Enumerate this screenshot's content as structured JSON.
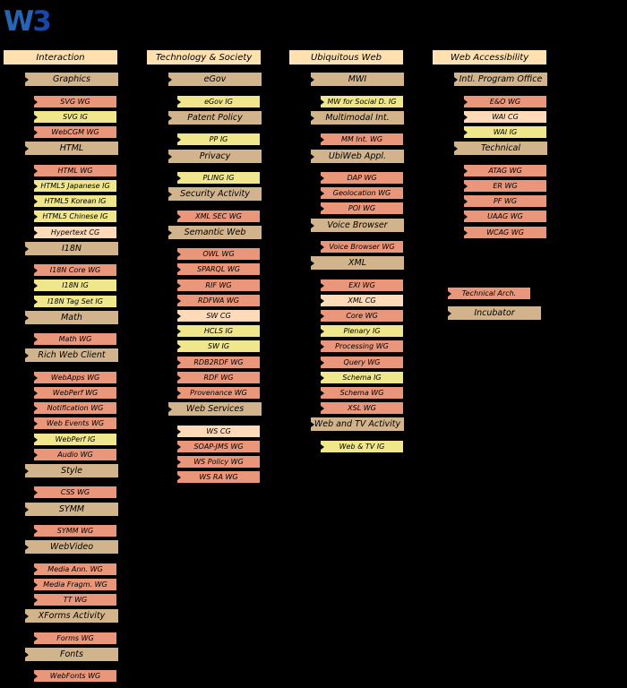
{
  "logo": {
    "w": "W",
    "three": "3"
  },
  "colors": {
    "background": "#000000",
    "text": "#000000",
    "header": "#FFE0B0",
    "category": "#D2B48C",
    "wg": "#E9967A",
    "ig": "#F0E68C",
    "cg": "#FFDAB9"
  },
  "columns": [
    {
      "title": "Interaction",
      "items": [
        {
          "label": "Graphics",
          "type": "category"
        },
        {
          "label": "SVG WG",
          "type": "wg"
        },
        {
          "label": "SVG IG",
          "type": "ig"
        },
        {
          "label": "WebCGM WG",
          "type": "wg"
        },
        {
          "label": "HTML",
          "type": "category"
        },
        {
          "label": "HTML WG",
          "type": "wg"
        },
        {
          "label": "HTML5 Japanese IG",
          "type": "ig"
        },
        {
          "label": "HTML5 Korean IG",
          "type": "ig"
        },
        {
          "label": "HTML5 Chinese IG",
          "type": "ig"
        },
        {
          "label": "Hypertext CG",
          "type": "cg"
        },
        {
          "label": "I18N",
          "type": "category"
        },
        {
          "label": "I18N Core WG",
          "type": "wg"
        },
        {
          "label": "I18N IG",
          "type": "ig"
        },
        {
          "label": "I18N Tag Set IG",
          "type": "ig"
        },
        {
          "label": "Math",
          "type": "category"
        },
        {
          "label": "Math WG",
          "type": "wg"
        },
        {
          "label": "Rich Web Client",
          "type": "category"
        },
        {
          "label": "WebApps WG",
          "type": "wg"
        },
        {
          "label": "WebPerf WG",
          "type": "wg"
        },
        {
          "label": "Notification WG",
          "type": "wg"
        },
        {
          "label": "Web Events WG",
          "type": "wg"
        },
        {
          "label": "WebPerf IG",
          "type": "ig"
        },
        {
          "label": "Audio WG",
          "type": "wg"
        },
        {
          "label": "Style",
          "type": "category"
        },
        {
          "label": "CSS WG",
          "type": "wg"
        },
        {
          "label": "SYMM",
          "type": "category"
        },
        {
          "label": "SYMM WG",
          "type": "wg"
        },
        {
          "label": "WebVideo",
          "type": "category"
        },
        {
          "label": "Media Ann. WG",
          "type": "wg"
        },
        {
          "label": "Media Fragm. WG",
          "type": "wg"
        },
        {
          "label": "TT WG",
          "type": "wg"
        },
        {
          "label": "XForms Activity",
          "type": "category"
        },
        {
          "label": "Forms WG",
          "type": "wg"
        },
        {
          "label": "Fonts",
          "type": "category"
        },
        {
          "label": "WebFonts WG",
          "type": "wg"
        }
      ]
    },
    {
      "title": "Technology & Society",
      "items": [
        {
          "label": "eGov",
          "type": "category"
        },
        {
          "label": "eGov IG",
          "type": "ig"
        },
        {
          "label": "Patent Policy",
          "type": "category"
        },
        {
          "label": "PP IG",
          "type": "ig"
        },
        {
          "label": "Privacy",
          "type": "category"
        },
        {
          "label": "PLING IG",
          "type": "ig"
        },
        {
          "label": "Security Activity",
          "type": "category"
        },
        {
          "label": "XML SEC WG",
          "type": "wg"
        },
        {
          "label": "Semantic Web",
          "type": "category"
        },
        {
          "label": "OWL WG",
          "type": "wg"
        },
        {
          "label": "SPARQL WG",
          "type": "wg"
        },
        {
          "label": "RIF WG",
          "type": "wg"
        },
        {
          "label": "RDFWA WG",
          "type": "wg"
        },
        {
          "label": "SW CG",
          "type": "cg"
        },
        {
          "label": "HCLS IG",
          "type": "ig"
        },
        {
          "label": "SW IG",
          "type": "ig"
        },
        {
          "label": "RDB2RDF WG",
          "type": "wg"
        },
        {
          "label": "RDF WG",
          "type": "wg"
        },
        {
          "label": "Provenance WG",
          "type": "wg"
        },
        {
          "label": "Web Services",
          "type": "category"
        },
        {
          "label": "WS CG",
          "type": "cg"
        },
        {
          "label": "SOAP-JMS WG",
          "type": "wg"
        },
        {
          "label": "WS Policy WG",
          "type": "wg"
        },
        {
          "label": "WS RA WG",
          "type": "wg"
        }
      ]
    },
    {
      "title": "Ubiquitous Web",
      "items": [
        {
          "label": "MWI",
          "type": "category"
        },
        {
          "label": "MW for Social D. IG",
          "type": "ig"
        },
        {
          "label": "Multimodal Int.",
          "type": "category"
        },
        {
          "label": "MM Int. WG",
          "type": "wg"
        },
        {
          "label": "UbiWeb Appl.",
          "type": "category"
        },
        {
          "label": "DAP WG",
          "type": "wg"
        },
        {
          "label": "Geolocation WG",
          "type": "wg"
        },
        {
          "label": "POI WG",
          "type": "wg"
        },
        {
          "label": "Voice Browser",
          "type": "category"
        },
        {
          "label": "Voice Browser WG",
          "type": "wg"
        },
        {
          "label": "XML",
          "type": "category"
        },
        {
          "label": "EXI WG",
          "type": "wg"
        },
        {
          "label": "XML CG",
          "type": "cg"
        },
        {
          "label": "Core WG",
          "type": "wg"
        },
        {
          "label": "Plenary IG",
          "type": "ig"
        },
        {
          "label": "Processing WG",
          "type": "wg"
        },
        {
          "label": "Query WG",
          "type": "wg"
        },
        {
          "label": "Schema IG",
          "type": "ig"
        },
        {
          "label": "Schema WG",
          "type": "wg"
        },
        {
          "label": "XSL WG",
          "type": "wg"
        },
        {
          "label": "Web and TV Activity",
          "type": "category"
        },
        {
          "label": "Web & TV IG",
          "type": "ig"
        }
      ]
    },
    {
      "title": "Web Accessibility",
      "items": [
        {
          "label": "Intl. Program Office",
          "type": "category"
        },
        {
          "label": "E&O WG",
          "type": "wg"
        },
        {
          "label": "WAI CG",
          "type": "cg"
        },
        {
          "label": "WAI IG",
          "type": "ig"
        },
        {
          "label": "Technical",
          "type": "category"
        },
        {
          "label": "ATAG WG",
          "type": "wg"
        },
        {
          "label": "ER WG",
          "type": "wg"
        },
        {
          "label": "PF WG",
          "type": "wg"
        },
        {
          "label": "UAAG WG",
          "type": "wg"
        },
        {
          "label": "WCAG WG",
          "type": "wg"
        }
      ]
    }
  ],
  "floating_boxes": [
    {
      "label": "Technical Arch.",
      "type": "wg"
    },
    {
      "label": "Incubator",
      "type": "category"
    }
  ]
}
